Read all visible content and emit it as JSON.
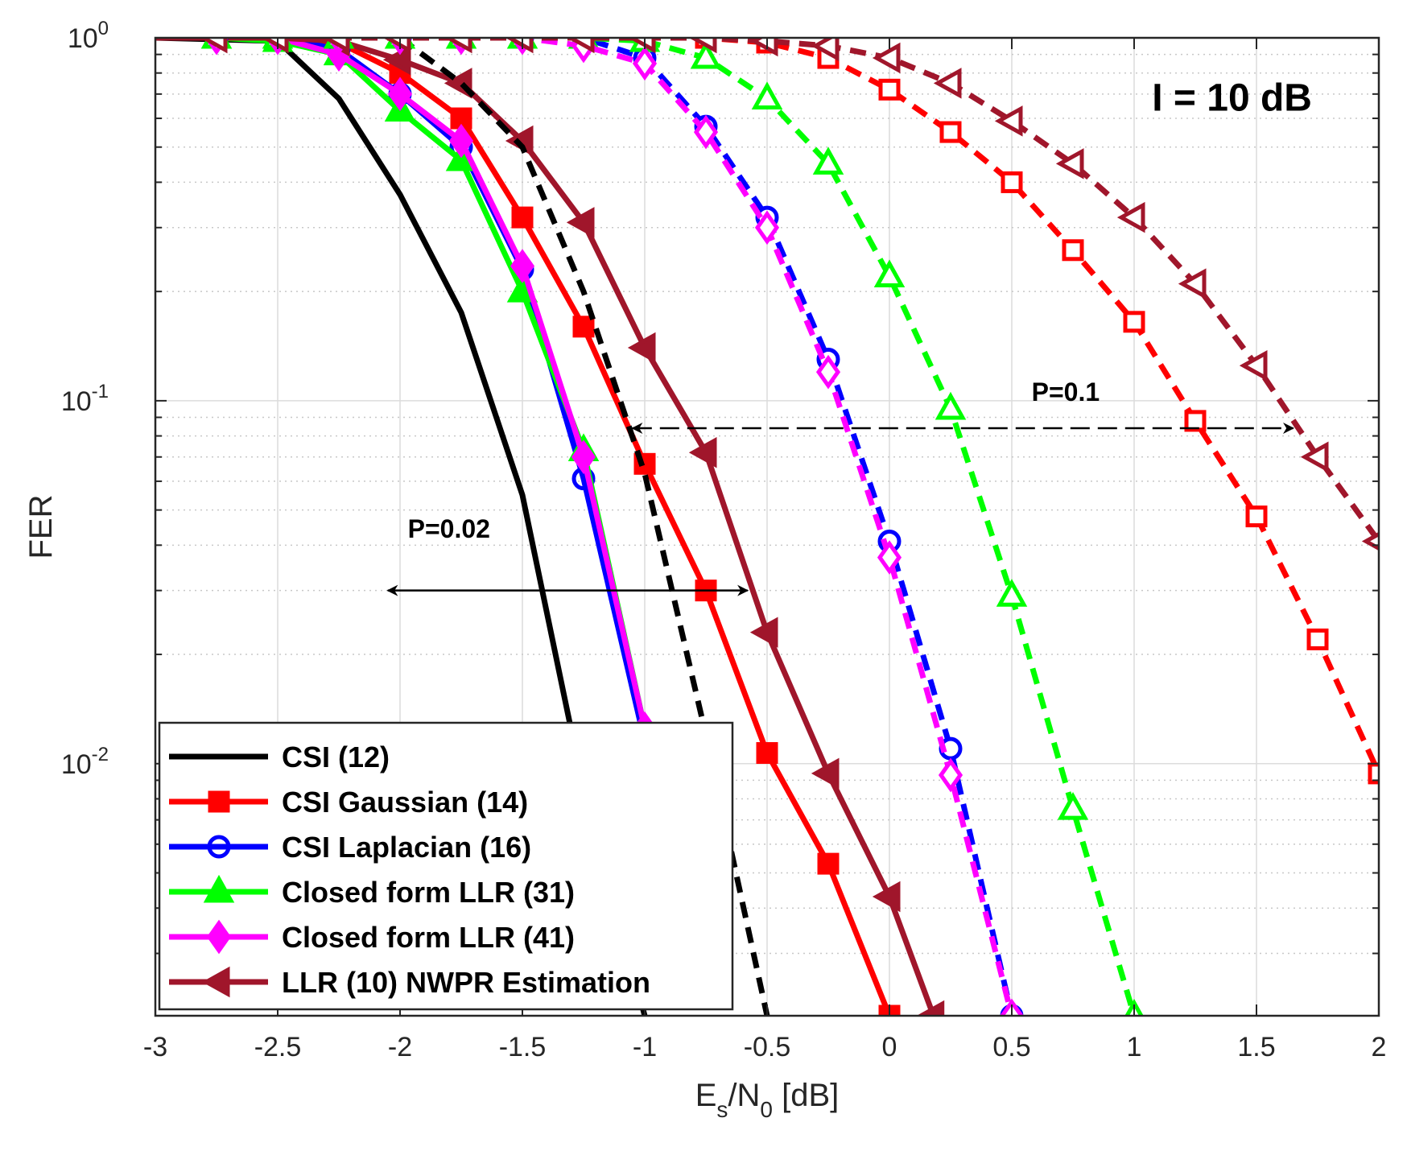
{
  "chart_data": {
    "type": "line",
    "yscale": "log",
    "xlim": [
      -3,
      2
    ],
    "ylim": [
      0.00202,
      1
    ],
    "xticks": [
      -3,
      -2.5,
      -2,
      -1.5,
      -1,
      -0.5,
      0,
      0.5,
      1,
      1.5,
      2
    ],
    "xtick_labels": [
      "-3",
      "-2.5",
      "-2",
      "-1.5",
      "-1",
      "-0.5",
      "0",
      "0.5",
      "1",
      "1.5",
      "2"
    ],
    "ytick_labels": [
      {
        "value": 1,
        "base": "10",
        "exp": "0"
      },
      {
        "value": 0.1,
        "base": "10",
        "exp": "-1"
      },
      {
        "value": 0.01,
        "base": "10",
        "exp": "-2"
      }
    ],
    "xlabel": {
      "e": "E",
      "sub_s": "s",
      "slash": "/N",
      "sub_0": "0",
      "rest": " [dB]"
    },
    "ylabel": "FER",
    "grid": true,
    "legend_position": "bottom-left",
    "series": [
      {
        "name": "CSI (12)",
        "color": "#000000",
        "marker": "none",
        "width": 7,
        "dash": false,
        "in_legend": true,
        "x": [
          -3,
          -2.5,
          -2.25,
          -2,
          -1.75,
          -1.5,
          -1.25,
          -1.0
        ],
        "y": [
          1.0,
          0.98,
          0.68,
          0.37,
          0.175,
          0.055,
          0.0085,
          0.00202
        ]
      },
      {
        "name": "CSI Gaussian (14)",
        "color": "#ff0000",
        "marker": "square",
        "width": 7,
        "dash": false,
        "in_legend": true,
        "x": [
          -3,
          -2.75,
          -2.5,
          -2.25,
          -2,
          -1.75,
          -1.5,
          -1.25,
          -1.0,
          -0.75,
          -0.5,
          -0.25,
          0
        ],
        "y": [
          1.0,
          1.0,
          1.0,
          0.97,
          0.8,
          0.6,
          0.32,
          0.16,
          0.067,
          0.03,
          0.0107,
          0.0053,
          0.00202
        ]
      },
      {
        "name": "CSI Laplacian (16)",
        "color": "#0000ff",
        "marker": "circle",
        "width": 7,
        "dash": false,
        "in_legend": true,
        "x": [
          -3,
          -2.75,
          -2.5,
          -2.25,
          -2,
          -1.75,
          -1.5,
          -1.25,
          -1.0
        ],
        "y": [
          1.0,
          1.0,
          1.0,
          0.93,
          0.7,
          0.5,
          0.23,
          0.061,
          0.0115
        ]
      },
      {
        "name": "Closed form LLR (31)",
        "color": "#00ff00",
        "marker": "triangle-up",
        "width": 7,
        "dash": false,
        "in_legend": true,
        "x": [
          -3,
          -2.75,
          -2.5,
          -2.25,
          -2,
          -1.75,
          -1.5,
          -1.25,
          -1.0
        ],
        "y": [
          1.0,
          1.0,
          0.98,
          0.9,
          0.63,
          0.46,
          0.2,
          0.073,
          0.0125
        ]
      },
      {
        "name": "Closed form LLR (41)",
        "color": "#ff00ff",
        "marker": "diamond",
        "width": 7,
        "dash": false,
        "in_legend": true,
        "x": [
          -3,
          -2.75,
          -2.5,
          -2.25,
          -2,
          -1.75,
          -1.5,
          -1.25,
          -1.0
        ],
        "y": [
          1.0,
          1.0,
          1.0,
          0.9,
          0.7,
          0.52,
          0.235,
          0.07,
          0.0125
        ]
      },
      {
        "name": "LLR (10) NWPR Estimation",
        "color": "#a0162b",
        "marker": "triangle-left",
        "width": 7,
        "dash": false,
        "in_legend": true,
        "x": [
          -3,
          -2.75,
          -2.5,
          -2.25,
          -2,
          -1.75,
          -1.5,
          -1.25,
          -1.0,
          -0.75,
          -0.5,
          -0.25,
          0,
          0.18
        ],
        "y": [
          1.0,
          1.0,
          1.0,
          0.98,
          0.87,
          0.75,
          0.52,
          0.31,
          0.14,
          0.072,
          0.023,
          0.0094,
          0.0043,
          0.00202
        ]
      },
      {
        "name": "CSI (12) dashed",
        "color": "#000000",
        "marker": "none",
        "width": 7,
        "dash": true,
        "in_legend": false,
        "x": [
          -2.0,
          -1.75,
          -1.5,
          -1.25,
          -1.0,
          -0.75,
          -0.5
        ],
        "y": [
          1.0,
          0.75,
          0.5,
          0.2,
          0.063,
          0.012,
          0.00202
        ]
      },
      {
        "name": "CSI Gaussian (14) dashed",
        "color": "#ff0000",
        "marker": "square-open",
        "width": 7,
        "dash": true,
        "in_legend": false,
        "x": [
          -3,
          -2.75,
          -2.5,
          -2.25,
          -2,
          -1.75,
          -1.5,
          -1.25,
          -1.0,
          -0.75,
          -0.5,
          -0.25,
          0,
          0.25,
          0.5,
          0.75,
          1.0,
          1.25,
          1.5,
          1.75,
          2.0
        ],
        "y": [
          1.0,
          1.0,
          1.0,
          1.0,
          1.0,
          1.0,
          1.0,
          1.0,
          1.0,
          1.0,
          0.97,
          0.88,
          0.72,
          0.55,
          0.4,
          0.26,
          0.165,
          0.088,
          0.048,
          0.022,
          0.0094
        ]
      },
      {
        "name": "CSI Laplacian (16) dashed",
        "color": "#0000ff",
        "marker": "circle-open",
        "width": 7,
        "dash": true,
        "in_legend": false,
        "x": [
          -3,
          -2.75,
          -2.5,
          -2.25,
          -2,
          -1.75,
          -1.5,
          -1.25,
          -1.0,
          -0.75,
          -0.5,
          -0.25,
          0,
          0.25,
          0.5
        ],
        "y": [
          1.0,
          1.0,
          1.0,
          1.0,
          1.0,
          1.0,
          1.0,
          1.0,
          0.88,
          0.57,
          0.32,
          0.13,
          0.041,
          0.011,
          0.00202
        ]
      },
      {
        "name": "Closed form LLR (31) dashed",
        "color": "#00ff00",
        "marker": "triangle-up-open",
        "width": 7,
        "dash": true,
        "in_legend": false,
        "x": [
          -3,
          -2.75,
          -2.5,
          -2.25,
          -2,
          -1.75,
          -1.5,
          -1.25,
          -1.0,
          -0.75,
          -0.5,
          -0.25,
          0,
          0.25,
          0.5,
          0.75,
          1.0
        ],
        "y": [
          1.0,
          1.0,
          1.0,
          1.0,
          1.0,
          1.0,
          1.0,
          1.0,
          0.98,
          0.88,
          0.68,
          0.45,
          0.22,
          0.095,
          0.029,
          0.0075,
          0.00202
        ]
      },
      {
        "name": "Closed form LLR (41) dashed",
        "color": "#ff00ff",
        "marker": "diamond-open",
        "width": 7,
        "dash": true,
        "in_legend": false,
        "x": [
          -3,
          -2.75,
          -2.5,
          -2.25,
          -2,
          -1.75,
          -1.5,
          -1.25,
          -1.0,
          -0.75,
          -0.5,
          -0.25,
          0,
          0.25,
          0.5
        ],
        "y": [
          1.0,
          1.0,
          1.0,
          1.0,
          1.0,
          1.0,
          1.0,
          0.95,
          0.85,
          0.55,
          0.3,
          0.12,
          0.037,
          0.0093,
          0.00202
        ]
      },
      {
        "name": "LLR (10) NWPR Estimation dashed",
        "color": "#a0162b",
        "marker": "triangle-left-open",
        "width": 7,
        "dash": true,
        "in_legend": false,
        "x": [
          -3,
          -2.75,
          -2.5,
          -2.25,
          -2,
          -1.75,
          -1.5,
          -1.25,
          -1.0,
          -0.75,
          -0.5,
          -0.25,
          0,
          0.25,
          0.5,
          0.75,
          1.0,
          1.25,
          1.5,
          1.75,
          2.0
        ],
        "y": [
          1.0,
          1.0,
          1.0,
          1.0,
          1.0,
          1.0,
          1.0,
          1.0,
          1.0,
          1.0,
          0.98,
          0.95,
          0.88,
          0.75,
          0.59,
          0.45,
          0.32,
          0.21,
          0.125,
          0.07,
          0.041
        ]
      }
    ],
    "annotations": [
      {
        "text": "I = 10 dB",
        "x": 1.4,
        "y": 0.63,
        "style": "big"
      },
      {
        "text": "P=0.1",
        "x": 0.72,
        "y": 0.1,
        "style": "normal"
      },
      {
        "text": "P=0.02",
        "x": -1.8,
        "y": 0.042,
        "style": "normal"
      }
    ],
    "arrows": [
      {
        "x1": -1.05,
        "x2": 1.65,
        "y": 0.084,
        "dash": true
      },
      {
        "x1": -2.05,
        "x2": -0.58,
        "y": 0.03,
        "dash": false
      }
    ]
  }
}
